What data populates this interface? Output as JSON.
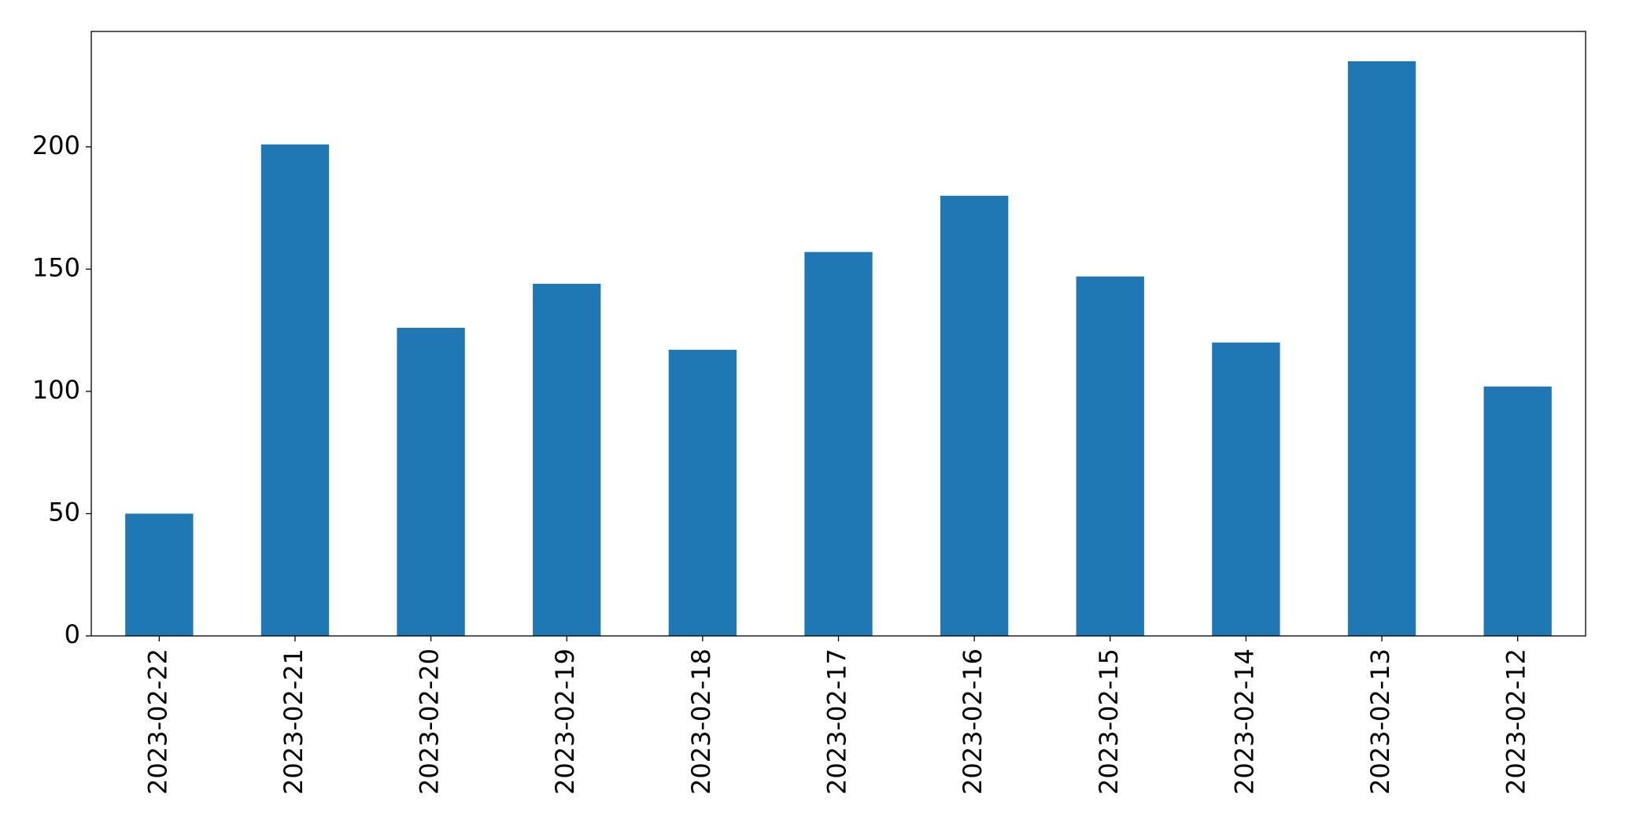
{
  "chart_data": {
    "type": "bar",
    "categories": [
      "2023-02-22",
      "2023-02-21",
      "2023-02-20",
      "2023-02-19",
      "2023-02-18",
      "2023-02-17",
      "2023-02-16",
      "2023-02-15",
      "2023-02-14",
      "2023-02-13",
      "2023-02-12"
    ],
    "values": [
      50,
      201,
      126,
      144,
      117,
      157,
      180,
      147,
      120,
      235,
      102
    ],
    "color": "#1f77b4",
    "ylim": [
      0,
      247.2
    ],
    "yticks": [
      0,
      50,
      100,
      150,
      200
    ],
    "grid": false
  }
}
